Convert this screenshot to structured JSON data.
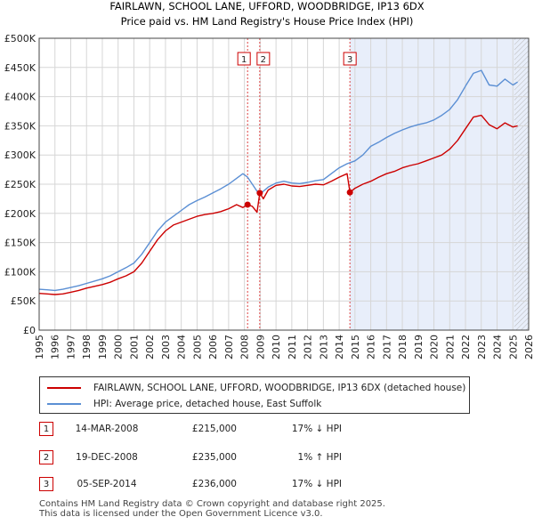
{
  "chart_data": {
    "type": "line",
    "title": "FAIRLAWN, SCHOOL LANE, UFFORD, WOODBRIDGE, IP13 6DX",
    "subtitle": "Price paid vs. HM Land Registry's House Price Index (HPI)",
    "x_ticks": [
      "1995",
      "1996",
      "1997",
      "1998",
      "1999",
      "2000",
      "2001",
      "2002",
      "2003",
      "2004",
      "2005",
      "2006",
      "2007",
      "2008",
      "2009",
      "2010",
      "2011",
      "2012",
      "2013",
      "2014",
      "2015",
      "2016",
      "2017",
      "2018",
      "2019",
      "2020",
      "2021",
      "2022",
      "2023",
      "2024",
      "2025",
      "2026"
    ],
    "y_ticks": [
      "£0",
      "£50K",
      "£100K",
      "£150K",
      "£200K",
      "£250K",
      "£300K",
      "£350K",
      "£400K",
      "£450K",
      "£500K"
    ],
    "xlim": [
      1995,
      2026
    ],
    "ylim": [
      0,
      500000
    ],
    "grid": true,
    "series": [
      {
        "name": "FAIRLAWN, SCHOOL LANE, UFFORD, WOODBRIDGE, IP13 6DX (detached house)",
        "color": "#cc0000",
        "x": [
          1995,
          1995.5,
          1996,
          1996.5,
          1997,
          1997.5,
          1998,
          1998.5,
          1999,
          1999.5,
          2000,
          2000.5,
          2001,
          2001.5,
          2002,
          2002.5,
          2003,
          2003.5,
          2004,
          2004.5,
          2005,
          2005.5,
          2006,
          2006.5,
          2007,
          2007.5,
          2007.9,
          2008.2,
          2008.5,
          2008.8,
          2008.97,
          2009.2,
          2009.5,
          2010,
          2010.5,
          2011,
          2011.5,
          2012,
          2012.5,
          2013,
          2013.5,
          2014,
          2014.5,
          2014.68,
          2015,
          2015.5,
          2016,
          2016.5,
          2017,
          2017.5,
          2018,
          2018.5,
          2019,
          2019.5,
          2020,
          2020.5,
          2021,
          2021.5,
          2022,
          2022.5,
          2023,
          2023.5,
          2024,
          2024.5,
          2025,
          2025.3
        ],
        "values": [
          63000,
          62000,
          61000,
          62000,
          65000,
          68000,
          72000,
          75000,
          78000,
          82000,
          88000,
          93000,
          100000,
          115000,
          135000,
          155000,
          170000,
          180000,
          185000,
          190000,
          195000,
          198000,
          200000,
          203000,
          208000,
          215000,
          210000,
          215000,
          212000,
          202000,
          235000,
          225000,
          240000,
          248000,
          250000,
          247000,
          246000,
          248000,
          250000,
          249000,
          255000,
          262000,
          268000,
          236000,
          243000,
          250000,
          255000,
          262000,
          268000,
          272000,
          278000,
          282000,
          285000,
          290000,
          295000,
          300000,
          310000,
          325000,
          345000,
          365000,
          368000,
          352000,
          345000,
          355000,
          348000,
          350000
        ]
      },
      {
        "name": "HPI: Average price, detached house, East Suffolk",
        "color": "#5b8fd4",
        "x": [
          1995,
          1995.5,
          1996,
          1996.5,
          1997,
          1997.5,
          1998,
          1998.5,
          1999,
          1999.5,
          2000,
          2000.5,
          2001,
          2001.5,
          2002,
          2002.5,
          2003,
          2003.5,
          2004,
          2004.5,
          2005,
          2005.5,
          2006,
          2006.5,
          2007,
          2007.5,
          2007.9,
          2008.2,
          2008.5,
          2008.8,
          2009,
          2009.2,
          2009.5,
          2010,
          2010.5,
          2011,
          2011.5,
          2012,
          2012.5,
          2013,
          2013.5,
          2014,
          2014.5,
          2015,
          2015.5,
          2016,
          2016.5,
          2017,
          2017.5,
          2018,
          2018.5,
          2019,
          2019.5,
          2020,
          2020.5,
          2021,
          2021.5,
          2022,
          2022.5,
          2023,
          2023.5,
          2024,
          2024.5,
          2025,
          2025.3
        ],
        "values": [
          70000,
          69000,
          68000,
          70000,
          73000,
          76000,
          80000,
          84000,
          88000,
          93000,
          100000,
          107000,
          115000,
          130000,
          150000,
          170000,
          185000,
          195000,
          205000,
          215000,
          222000,
          228000,
          235000,
          242000,
          250000,
          260000,
          268000,
          262000,
          250000,
          238000,
          233000,
          238000,
          245000,
          252000,
          255000,
          252000,
          251000,
          253000,
          256000,
          258000,
          268000,
          278000,
          285000,
          290000,
          300000,
          315000,
          322000,
          330000,
          337000,
          343000,
          348000,
          352000,
          355000,
          360000,
          368000,
          378000,
          395000,
          418000,
          440000,
          445000,
          420000,
          418000,
          430000,
          420000,
          425000
        ]
      }
    ],
    "transactions": [
      {
        "label": "1",
        "x": 2008.2,
        "value": 215000
      },
      {
        "label": "2",
        "x": 2008.97,
        "value": 235000
      },
      {
        "label": "3",
        "x": 2014.68,
        "value": 236000
      }
    ],
    "shaded_period": {
      "from": 2014.68,
      "to": 2026
    },
    "hatched_period": {
      "from": 2025.1,
      "to": 2026
    }
  },
  "legend": {
    "property_label": "FAIRLAWN, SCHOOL LANE, UFFORD, WOODBRIDGE, IP13 6DX (detached house)",
    "hpi_label": "HPI: Average price, detached house, East Suffolk"
  },
  "table": [
    {
      "num": "1",
      "date": "14-MAR-2008",
      "price": "£215,000",
      "hpi": "17% ↓ HPI"
    },
    {
      "num": "2",
      "date": "19-DEC-2008",
      "price": "£235,000",
      "hpi": "1% ↑ HPI"
    },
    {
      "num": "3",
      "date": "05-SEP-2014",
      "price": "£236,000",
      "hpi": "17% ↓ HPI"
    }
  ],
  "footer": {
    "line1": "Contains HM Land Registry data © Crown copyright and database right 2025.",
    "line2": "This data is licensed under the Open Government Licence v3.0."
  },
  "colors": {
    "property": "#cc0000",
    "hpi": "#5b8fd4",
    "shade": "#e8eefa",
    "grid": "#d6d6d6"
  }
}
